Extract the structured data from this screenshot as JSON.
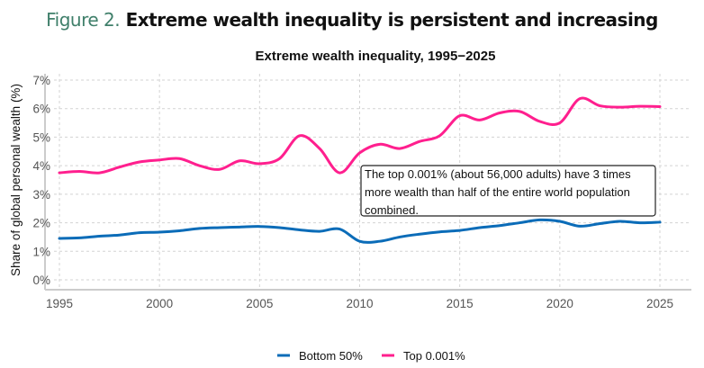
{
  "figure": {
    "number": "Figure 2.",
    "title": "Extreme wealth inequality is persistent and increasing"
  },
  "chart_data": {
    "type": "line",
    "title": "Extreme wealth inequality, 1995−2025",
    "xlabel": "",
    "ylabel": "Share of global personal wealth (%)",
    "xlim": [
      1995,
      2025
    ],
    "ylim": [
      0,
      7
    ],
    "x_ticks": [
      "1995",
      "2000",
      "2005",
      "2010",
      "2015",
      "2020",
      "2025"
    ],
    "y_ticks": [
      "0%",
      "1%",
      "2%",
      "3%",
      "4%",
      "5%",
      "6%",
      "7%"
    ],
    "grid": true,
    "legend_position": "bottom",
    "x": [
      1995,
      1996,
      1997,
      1998,
      1999,
      2000,
      2001,
      2002,
      2003,
      2004,
      2005,
      2006,
      2007,
      2008,
      2009,
      2010,
      2011,
      2012,
      2013,
      2014,
      2015,
      2016,
      2017,
      2018,
      2019,
      2020,
      2021,
      2022,
      2023,
      2024,
      2025
    ],
    "series": [
      {
        "name": "Bottom 50%",
        "color": "#0b6cb8",
        "values": [
          1.45,
          1.47,
          1.53,
          1.57,
          1.65,
          1.67,
          1.72,
          1.8,
          1.83,
          1.85,
          1.87,
          1.83,
          1.75,
          1.7,
          1.78,
          1.35,
          1.35,
          1.5,
          1.6,
          1.68,
          1.73,
          1.83,
          1.9,
          2.0,
          2.1,
          2.05,
          1.88,
          1.97,
          2.05,
          2.0,
          2.02
        ]
      },
      {
        "name": "Top 0.001%",
        "color": "#ff1f8e",
        "values": [
          3.75,
          3.8,
          3.75,
          3.95,
          4.13,
          4.2,
          4.25,
          4.0,
          3.87,
          4.17,
          4.07,
          4.25,
          5.05,
          4.6,
          3.75,
          4.45,
          4.75,
          4.6,
          4.85,
          5.05,
          5.75,
          5.6,
          5.85,
          5.9,
          5.55,
          5.5,
          6.35,
          6.1,
          6.05,
          6.08,
          6.07
        ]
      }
    ],
    "annotation": {
      "lines": [
        "The top 0.001% (about 56,000 adults) have 3 times",
        "more wealth than half of the entire world population",
        "combined."
      ]
    }
  }
}
